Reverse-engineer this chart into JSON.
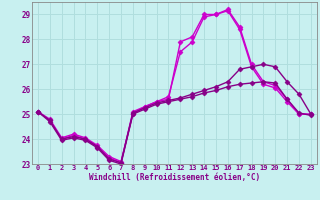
{
  "xlabel": "Windchill (Refroidissement éolien,°C)",
  "bg_color": "#c8f0f0",
  "grid_color": "#b0dede",
  "xlim": [
    -0.5,
    23.5
  ],
  "ylim": [
    23.0,
    29.5
  ],
  "yticks": [
    23,
    24,
    25,
    26,
    27,
    28,
    29
  ],
  "xticks": [
    0,
    1,
    2,
    3,
    4,
    5,
    6,
    7,
    8,
    9,
    10,
    11,
    12,
    13,
    14,
    15,
    16,
    17,
    18,
    19,
    20,
    21,
    22,
    23
  ],
  "series": [
    {
      "x": [
        0,
        1,
        2,
        3,
        4,
        5,
        6,
        7,
        8,
        9,
        10,
        11,
        12,
        13,
        14,
        15,
        16,
        17,
        18,
        19,
        20,
        21,
        22,
        23
      ],
      "y": [
        25.1,
        24.8,
        24.05,
        24.2,
        24.05,
        23.75,
        23.3,
        23.1,
        25.0,
        25.3,
        25.5,
        25.6,
        27.9,
        28.1,
        29.0,
        29.0,
        29.2,
        28.5,
        27.0,
        26.3,
        26.15,
        25.6,
        25.0,
        25.0
      ],
      "color": "#cc00cc",
      "marker": "D",
      "markersize": 2.5,
      "linewidth": 1.0
    },
    {
      "x": [
        0,
        1,
        2,
        3,
        4,
        5,
        6,
        7,
        8,
        9,
        10,
        11,
        12,
        13,
        14,
        15,
        16,
        17,
        18,
        19,
        20,
        21,
        22,
        23
      ],
      "y": [
        25.1,
        24.75,
        24.0,
        24.15,
        24.0,
        23.7,
        23.25,
        23.05,
        25.1,
        25.3,
        25.5,
        25.7,
        27.5,
        27.9,
        28.9,
        29.0,
        29.15,
        28.4,
        26.9,
        26.2,
        26.05,
        25.5,
        25.0,
        25.0
      ],
      "color": "#cc00cc",
      "marker": "D",
      "markersize": 2.5,
      "linewidth": 1.0
    },
    {
      "x": [
        0,
        1,
        2,
        3,
        4,
        5,
        6,
        7,
        8,
        9,
        10,
        11,
        12,
        13,
        14,
        15,
        16,
        17,
        18,
        19,
        20,
        21,
        22,
        23
      ],
      "y": [
        25.1,
        24.75,
        24.0,
        24.1,
        24.0,
        23.7,
        23.2,
        23.05,
        25.05,
        25.25,
        25.45,
        25.55,
        25.65,
        25.8,
        25.95,
        26.1,
        26.3,
        26.8,
        26.9,
        27.0,
        26.9,
        26.3,
        25.8,
        25.0
      ],
      "color": "#880088",
      "marker": "D",
      "markersize": 2.5,
      "linewidth": 1.0
    },
    {
      "x": [
        0,
        1,
        2,
        3,
        4,
        5,
        6,
        7,
        8,
        9,
        10,
        11,
        12,
        13,
        14,
        15,
        16,
        17,
        18,
        19,
        20,
        21,
        22,
        23
      ],
      "y": [
        25.1,
        24.7,
        23.95,
        24.05,
        23.95,
        23.65,
        23.15,
        23.0,
        25.0,
        25.2,
        25.4,
        25.5,
        25.6,
        25.7,
        25.85,
        25.95,
        26.1,
        26.2,
        26.25,
        26.3,
        26.25,
        25.6,
        25.05,
        24.95
      ],
      "color": "#880088",
      "marker": "D",
      "markersize": 2.5,
      "linewidth": 1.0
    }
  ]
}
